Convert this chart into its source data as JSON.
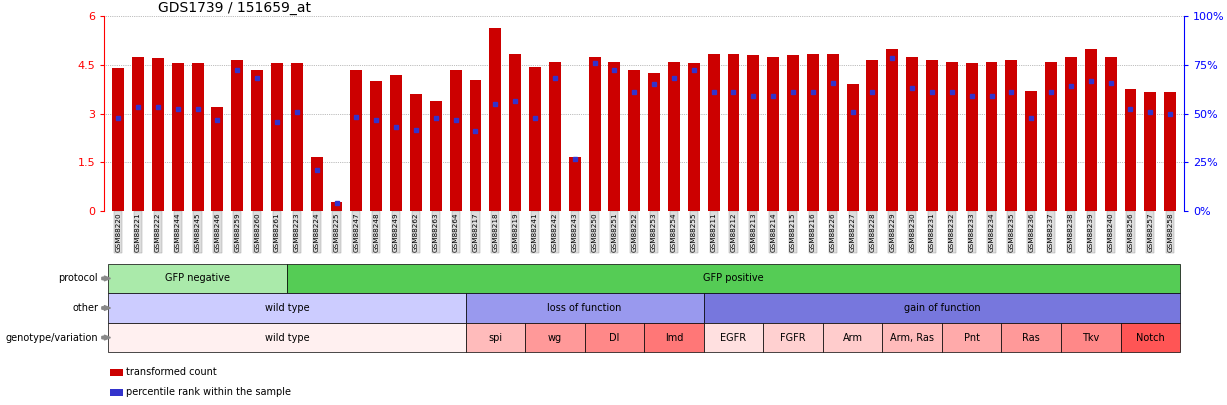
{
  "title": "GDS1739 / 151659_at",
  "samples": [
    "GSM88220",
    "GSM88221",
    "GSM88222",
    "GSM88244",
    "GSM88245",
    "GSM88246",
    "GSM88259",
    "GSM88260",
    "GSM88261",
    "GSM88223",
    "GSM88224",
    "GSM88225",
    "GSM88247",
    "GSM88248",
    "GSM88249",
    "GSM88262",
    "GSM88263",
    "GSM88264",
    "GSM88217",
    "GSM88218",
    "GSM88219",
    "GSM88241",
    "GSM88242",
    "GSM88243",
    "GSM88250",
    "GSM88251",
    "GSM88252",
    "GSM88253",
    "GSM88254",
    "GSM88255",
    "GSM88211",
    "GSM88212",
    "GSM88213",
    "GSM88214",
    "GSM88215",
    "GSM88216",
    "GSM88226",
    "GSM88227",
    "GSM88228",
    "GSM88229",
    "GSM88230",
    "GSM88231",
    "GSM88232",
    "GSM88233",
    "GSM88234",
    "GSM88235",
    "GSM88236",
    "GSM88237",
    "GSM88238",
    "GSM88239",
    "GSM88240",
    "GSM88256",
    "GSM88257",
    "GSM88258"
  ],
  "bar_heights": [
    4.4,
    4.75,
    4.7,
    4.55,
    4.55,
    3.2,
    4.65,
    4.35,
    4.55,
    4.55,
    1.65,
    0.28,
    4.35,
    4.0,
    4.2,
    3.6,
    3.4,
    4.35,
    4.05,
    5.65,
    4.85,
    4.45,
    4.6,
    1.65,
    4.75,
    4.6,
    4.35,
    4.25,
    4.6,
    4.55,
    4.85,
    4.85,
    4.8,
    4.75,
    4.8,
    4.85,
    4.85,
    3.9,
    4.65,
    5.0,
    4.75,
    4.65,
    4.6,
    4.55,
    4.6,
    4.65,
    3.7,
    4.6,
    4.75,
    5.0,
    4.75,
    3.75,
    3.65,
    3.65
  ],
  "percentile_heights": [
    2.85,
    3.2,
    3.2,
    3.15,
    3.15,
    2.8,
    4.35,
    4.1,
    2.75,
    3.05,
    1.25,
    0.25,
    2.9,
    2.8,
    2.6,
    2.5,
    2.85,
    2.8,
    2.45,
    3.3,
    3.4,
    2.85,
    4.1,
    1.6,
    4.55,
    4.35,
    3.65,
    3.9,
    4.1,
    4.35,
    3.65,
    3.65,
    3.55,
    3.55,
    3.65,
    3.65,
    3.95,
    3.05,
    3.65,
    4.7,
    3.8,
    3.65,
    3.65,
    3.55,
    3.55,
    3.65,
    2.85,
    3.65,
    3.85,
    4.0,
    3.95,
    3.15,
    3.05,
    3.0
  ],
  "protocol_groups": [
    {
      "label": "GFP negative",
      "start": 0,
      "end": 9,
      "color": "#AAEAAA"
    },
    {
      "label": "GFP positive",
      "start": 9,
      "end": 54,
      "color": "#55CC55"
    }
  ],
  "other_groups": [
    {
      "label": "wild type",
      "start": 0,
      "end": 18,
      "color": "#CCCCFF"
    },
    {
      "label": "loss of function",
      "start": 18,
      "end": 30,
      "color": "#9999EE"
    },
    {
      "label": "gain of function",
      "start": 30,
      "end": 54,
      "color": "#7777DD"
    }
  ],
  "genotype_groups": [
    {
      "label": "wild type",
      "start": 0,
      "end": 18,
      "color": "#FFF0F0"
    },
    {
      "label": "spi",
      "start": 18,
      "end": 21,
      "color": "#FFBBBB"
    },
    {
      "label": "wg",
      "start": 21,
      "end": 24,
      "color": "#FF9999"
    },
    {
      "label": "Dl",
      "start": 24,
      "end": 27,
      "color": "#FF8888"
    },
    {
      "label": "lmd",
      "start": 27,
      "end": 30,
      "color": "#FF7777"
    },
    {
      "label": "EGFR",
      "start": 30,
      "end": 33,
      "color": "#FFE0E0"
    },
    {
      "label": "FGFR",
      "start": 33,
      "end": 36,
      "color": "#FFD0D0"
    },
    {
      "label": "Arm",
      "start": 36,
      "end": 39,
      "color": "#FFCCCC"
    },
    {
      "label": "Arm, Ras",
      "start": 39,
      "end": 42,
      "color": "#FFBBBB"
    },
    {
      "label": "Pnt",
      "start": 42,
      "end": 45,
      "color": "#FFAAAA"
    },
    {
      "label": "Ras",
      "start": 45,
      "end": 48,
      "color": "#FF9999"
    },
    {
      "label": "Tkv",
      "start": 48,
      "end": 51,
      "color": "#FF8888"
    },
    {
      "label": "Notch",
      "start": 51,
      "end": 54,
      "color": "#FF5555"
    }
  ],
  "bar_color": "#CC0000",
  "percentile_color": "#3333CC",
  "ylim": [
    0,
    6
  ],
  "yticks": [
    0,
    1.5,
    3.0,
    4.5,
    6
  ],
  "right_ytick_vals": [
    0,
    25,
    50,
    75,
    100
  ],
  "right_ytick_labels": [
    "0%",
    "25%",
    "50%",
    "75%",
    "100%"
  ],
  "legend_items": [
    {
      "label": "transformed count",
      "color": "#CC0000"
    },
    {
      "label": "percentile rank within the sample",
      "color": "#3333CC"
    }
  ],
  "row_labels": [
    "protocol",
    "other",
    "genotype/variation"
  ]
}
